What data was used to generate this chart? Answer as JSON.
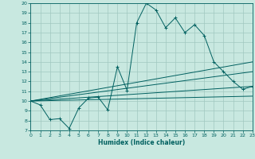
{
  "xlabel": "Humidex (Indice chaleur)",
  "xlim": [
    0,
    23
  ],
  "ylim": [
    7,
    20
  ],
  "yticks": [
    7,
    8,
    9,
    10,
    11,
    12,
    13,
    14,
    15,
    16,
    17,
    18,
    19,
    20
  ],
  "xticks": [
    0,
    1,
    2,
    3,
    4,
    5,
    6,
    7,
    8,
    9,
    10,
    11,
    12,
    13,
    14,
    15,
    16,
    17,
    18,
    19,
    20,
    21,
    22,
    23
  ],
  "bg_color": "#c8e8e0",
  "line_color": "#006060",
  "grid_color": "#a0c8c0",
  "main_line": {
    "x": [
      0,
      1,
      2,
      3,
      4,
      5,
      6,
      7,
      8,
      9,
      10,
      11,
      12,
      13,
      14,
      15,
      16,
      17,
      18,
      19,
      20,
      21,
      22,
      23
    ],
    "y": [
      10,
      9.6,
      8.1,
      8.2,
      7.2,
      9.3,
      10.3,
      10.4,
      9.1,
      13.5,
      11.1,
      18.0,
      20.0,
      19.3,
      17.5,
      18.5,
      17.0,
      17.8,
      16.7,
      14.0,
      13.0,
      12.0,
      11.2,
      11.5
    ]
  },
  "fan_lines": [
    {
      "x": [
        0,
        23
      ],
      "y": [
        10,
        14.0
      ]
    },
    {
      "x": [
        0,
        23
      ],
      "y": [
        10,
        13.0
      ]
    },
    {
      "x": [
        0,
        23
      ],
      "y": [
        10,
        11.5
      ]
    },
    {
      "x": [
        0,
        23
      ],
      "y": [
        10,
        10.5
      ]
    }
  ]
}
